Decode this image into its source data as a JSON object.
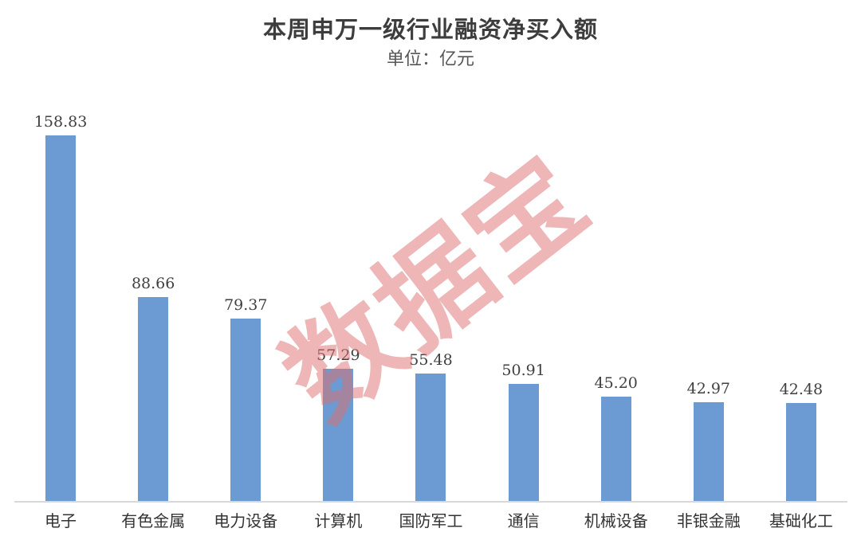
{
  "chart_data": {
    "type": "bar",
    "title": "本周申万一级行业融资净买入额",
    "subtitle": "单位：亿元",
    "categories": [
      "电子",
      "有色金属",
      "电力设备",
      "计算机",
      "国防军工",
      "通信",
      "机械设备",
      "非银金融",
      "基础化工"
    ],
    "values": [
      158.83,
      88.66,
      79.37,
      57.29,
      55.48,
      50.91,
      45.2,
      42.97,
      42.48
    ],
    "value_labels": [
      "158.83",
      "88.66",
      "79.37",
      "57.29",
      "55.48",
      "50.91",
      "45.20",
      "42.97",
      "42.48"
    ],
    "xlabel": "",
    "ylabel": "亿元",
    "ylim": [
      0,
      183
    ],
    "grid": false,
    "legend": false,
    "bar_color": "#6c9bd3",
    "axis_line_color": "#d9d9d9",
    "label_color": "#404040"
  },
  "watermark": {
    "text": "数据宝",
    "color_rgba": "rgba(222, 110, 110, 0.5)"
  }
}
